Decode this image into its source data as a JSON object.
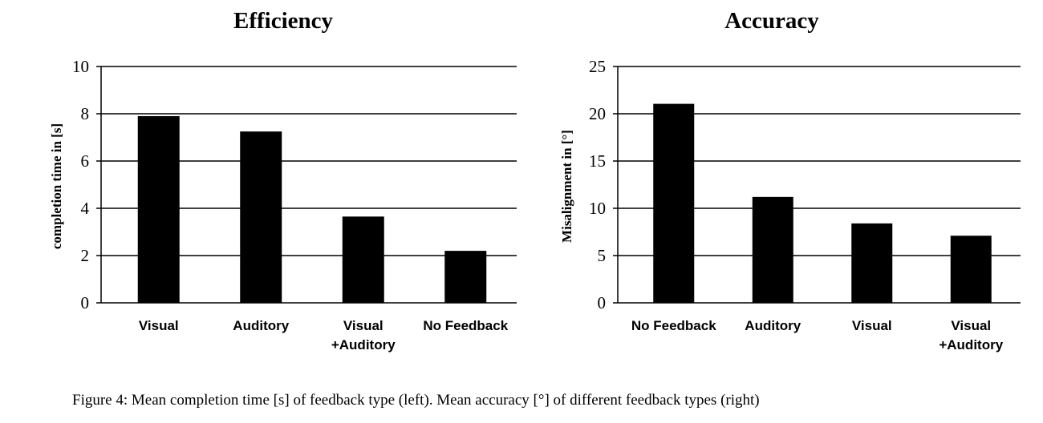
{
  "chart_data": [
    {
      "type": "bar",
      "title": "Efficiency",
      "ylabel": "completion time in [s]",
      "xlabel": "",
      "categories": [
        [
          "Visual"
        ],
        [
          "Auditory"
        ],
        [
          "Visual",
          "+Auditory"
        ],
        [
          "No Feedback"
        ]
      ],
      "values": [
        7.9,
        7.25,
        3.65,
        2.2
      ],
      "ylim": [
        0,
        10
      ],
      "yticks": [
        0,
        2,
        4,
        6,
        8,
        10
      ],
      "grid": true,
      "bar_color": "#000000"
    },
    {
      "type": "bar",
      "title": "Accuracy",
      "ylabel": "Misalignment in [°]",
      "xlabel": "",
      "categories": [
        [
          "No Feedback"
        ],
        [
          "Auditory"
        ],
        [
          "Visual"
        ],
        [
          "Visual",
          "+Auditory"
        ]
      ],
      "values": [
        21.05,
        11.2,
        8.4,
        7.1
      ],
      "ylim": [
        0,
        25
      ],
      "yticks": [
        0,
        5,
        10,
        15,
        20,
        25
      ],
      "grid": true,
      "bar_color": "#000000"
    }
  ],
  "caption": "Figure 4: Mean completion time [s] of feedback type (left). Mean accuracy [°] of different feedback types (right)"
}
